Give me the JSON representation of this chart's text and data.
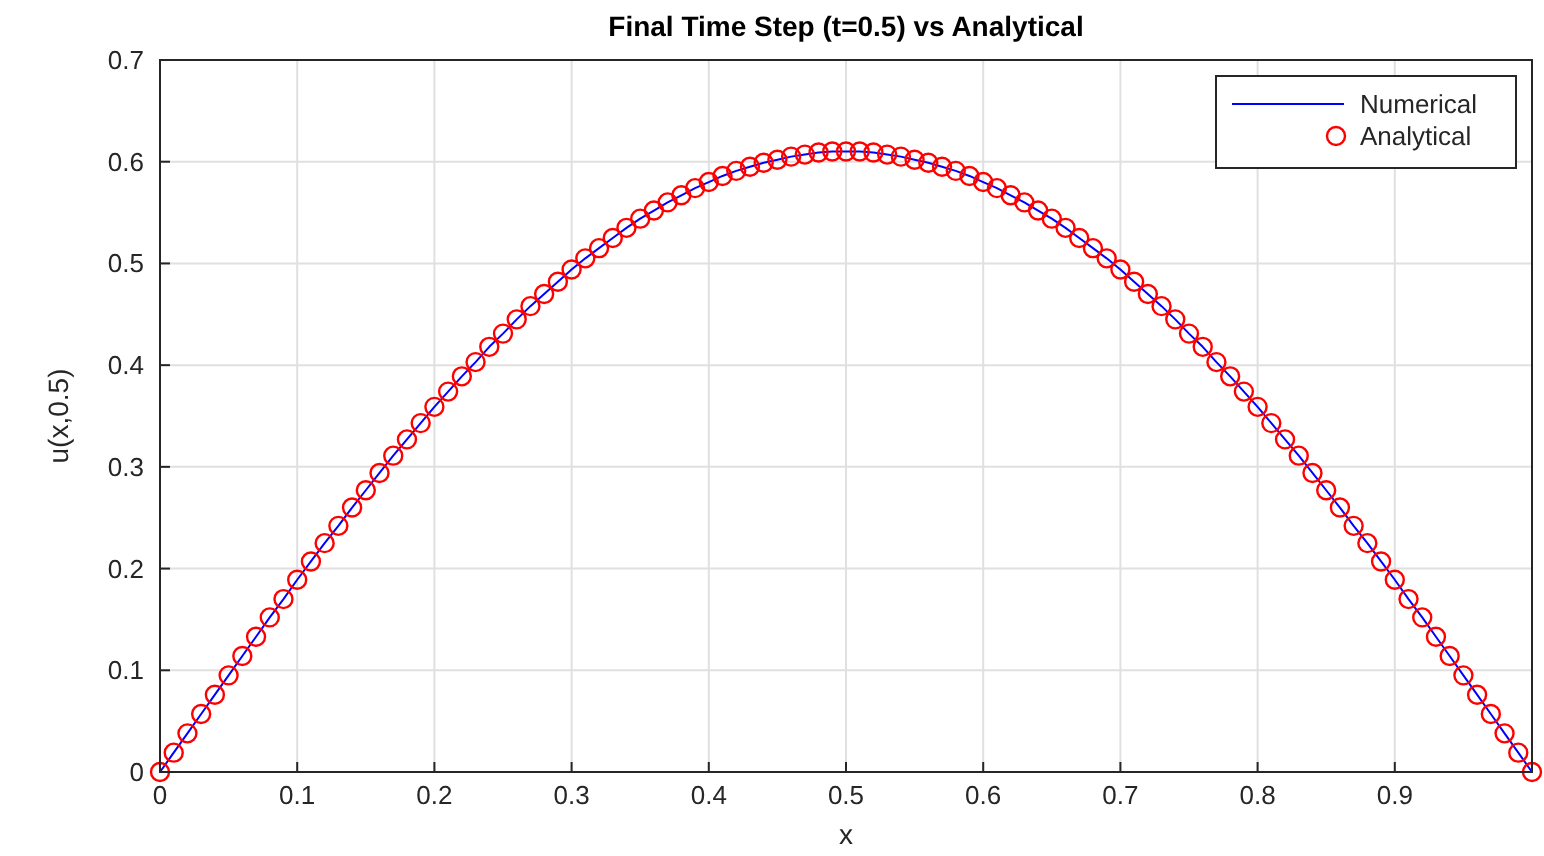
{
  "chart_data": {
    "type": "line",
    "title": "Final Time Step (t=0.5) vs Analytical",
    "xlabel": "x",
    "ylabel": "u(x,0.5)",
    "x": [
      0,
      0.01,
      0.02,
      0.03,
      0.04,
      0.05,
      0.06,
      0.07,
      0.08,
      0.09,
      0.1,
      0.11,
      0.12,
      0.13,
      0.14,
      0.15,
      0.16,
      0.17,
      0.18,
      0.19,
      0.2,
      0.21,
      0.22,
      0.23,
      0.24,
      0.25,
      0.26,
      0.27,
      0.28,
      0.29,
      0.3,
      0.31,
      0.32,
      0.33,
      0.34,
      0.35,
      0.36,
      0.37,
      0.38,
      0.39,
      0.4,
      0.41,
      0.42,
      0.43,
      0.44,
      0.45,
      0.46,
      0.47,
      0.48,
      0.49,
      0.5,
      0.51,
      0.52,
      0.53,
      0.54,
      0.55,
      0.56,
      0.57,
      0.58,
      0.59,
      0.6,
      0.61,
      0.62,
      0.63,
      0.64,
      0.65,
      0.66,
      0.67,
      0.68,
      0.69,
      0.7,
      0.71,
      0.72,
      0.73,
      0.74,
      0.75,
      0.76,
      0.77,
      0.78,
      0.79,
      0.8,
      0.81,
      0.82,
      0.83,
      0.84,
      0.85,
      0.86,
      0.87,
      0.88,
      0.89,
      0.9,
      0.91,
      0.92,
      0.93,
      0.94,
      0.95,
      0.96,
      0.97,
      0.98,
      0.99,
      1
    ],
    "series": [
      {
        "name": "Numerical",
        "color": "#0000ff",
        "marker": "none",
        "line_style": "solid",
        "values": [
          0,
          0.019,
          0.038,
          0.057,
          0.076,
          0.095,
          0.114,
          0.133,
          0.152,
          0.17,
          0.189,
          0.207,
          0.225,
          0.242,
          0.26,
          0.277,
          0.294,
          0.311,
          0.327,
          0.343,
          0.359,
          0.374,
          0.389,
          0.403,
          0.418,
          0.431,
          0.445,
          0.458,
          0.47,
          0.482,
          0.494,
          0.505,
          0.515,
          0.525,
          0.535,
          0.544,
          0.552,
          0.56,
          0.567,
          0.574,
          0.58,
          0.586,
          0.591,
          0.595,
          0.599,
          0.602,
          0.605,
          0.607,
          0.609,
          0.61,
          0.61,
          0.61,
          0.609,
          0.607,
          0.605,
          0.602,
          0.599,
          0.595,
          0.591,
          0.586,
          0.58,
          0.574,
          0.567,
          0.56,
          0.552,
          0.544,
          0.535,
          0.525,
          0.515,
          0.505,
          0.494,
          0.482,
          0.47,
          0.458,
          0.445,
          0.431,
          0.418,
          0.403,
          0.389,
          0.374,
          0.359,
          0.343,
          0.327,
          0.311,
          0.294,
          0.277,
          0.26,
          0.242,
          0.225,
          0.207,
          0.189,
          0.17,
          0.152,
          0.133,
          0.114,
          0.095,
          0.076,
          0.057,
          0.038,
          0.019,
          0
        ]
      },
      {
        "name": "Analytical",
        "type": "scatter",
        "color": "#ff0000",
        "marker": "circle",
        "values": [
          0,
          0.019,
          0.038,
          0.057,
          0.076,
          0.095,
          0.114,
          0.133,
          0.152,
          0.17,
          0.189,
          0.207,
          0.225,
          0.242,
          0.26,
          0.277,
          0.294,
          0.311,
          0.327,
          0.343,
          0.359,
          0.374,
          0.389,
          0.403,
          0.418,
          0.431,
          0.445,
          0.458,
          0.47,
          0.482,
          0.494,
          0.505,
          0.515,
          0.525,
          0.535,
          0.544,
          0.552,
          0.56,
          0.567,
          0.574,
          0.58,
          0.586,
          0.591,
          0.595,
          0.599,
          0.602,
          0.605,
          0.607,
          0.609,
          0.61,
          0.61,
          0.61,
          0.609,
          0.607,
          0.605,
          0.602,
          0.599,
          0.595,
          0.591,
          0.586,
          0.58,
          0.574,
          0.567,
          0.56,
          0.552,
          0.544,
          0.535,
          0.525,
          0.515,
          0.505,
          0.494,
          0.482,
          0.47,
          0.458,
          0.445,
          0.431,
          0.418,
          0.403,
          0.389,
          0.374,
          0.359,
          0.343,
          0.327,
          0.311,
          0.294,
          0.277,
          0.26,
          0.242,
          0.225,
          0.207,
          0.189,
          0.17,
          0.152,
          0.133,
          0.114,
          0.095,
          0.076,
          0.057,
          0.038,
          0.019,
          0
        ]
      }
    ],
    "xlim": [
      0,
      1
    ],
    "xticks": [
      0,
      0.1,
      0.2,
      0.3,
      0.4,
      0.5,
      0.6,
      0.7,
      0.8,
      0.9,
      {
        "value": 1,
        "label": null
      }
    ],
    "ylim": [
      0,
      0.7
    ],
    "yticks": [
      0,
      0.1,
      0.2,
      0.3,
      0.4,
      0.5,
      0.6,
      0.7
    ],
    "grid": true,
    "legend": "top right"
  }
}
